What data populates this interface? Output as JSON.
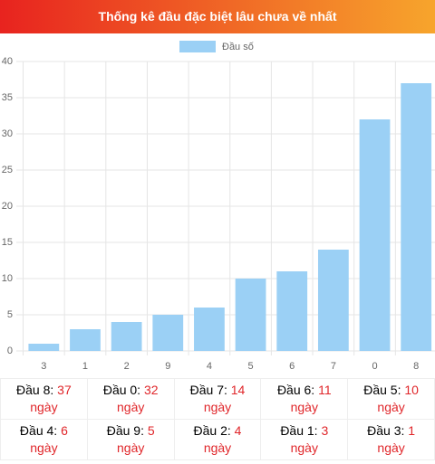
{
  "title": "Thống kê đầu đặc biệt lâu chưa về nhất",
  "chart_data": {
    "type": "bar",
    "legend": "Đầu số",
    "color": "#9bd0f5",
    "categories": [
      "3",
      "1",
      "2",
      "9",
      "4",
      "5",
      "6",
      "7",
      "0",
      "8"
    ],
    "values": [
      1,
      3,
      4,
      5,
      6,
      10,
      11,
      14,
      32,
      37
    ],
    "ylim": [
      0,
      40
    ],
    "yticks": [
      0,
      5,
      10,
      15,
      20,
      25,
      30,
      35,
      40
    ],
    "grid": true
  },
  "table": {
    "cells": [
      {
        "label": "Đầu 8:",
        "value": 37,
        "unit": "ngày"
      },
      {
        "label": "Đầu 0:",
        "value": 32,
        "unit": "ngày"
      },
      {
        "label": "Đầu 7:",
        "value": 14,
        "unit": "ngày"
      },
      {
        "label": "Đầu 6:",
        "value": 11,
        "unit": "ngày"
      },
      {
        "label": "Đầu 5:",
        "value": 10,
        "unit": "ngày"
      },
      {
        "label": "Đầu 4:",
        "value": 6,
        "unit": "ngày"
      },
      {
        "label": "Đầu 9:",
        "value": 5,
        "unit": "ngày"
      },
      {
        "label": "Đầu 2:",
        "value": 4,
        "unit": "ngày"
      },
      {
        "label": "Đầu 1:",
        "value": 3,
        "unit": "ngày"
      },
      {
        "label": "Đầu 3:",
        "value": 1,
        "unit": "ngày"
      }
    ]
  }
}
